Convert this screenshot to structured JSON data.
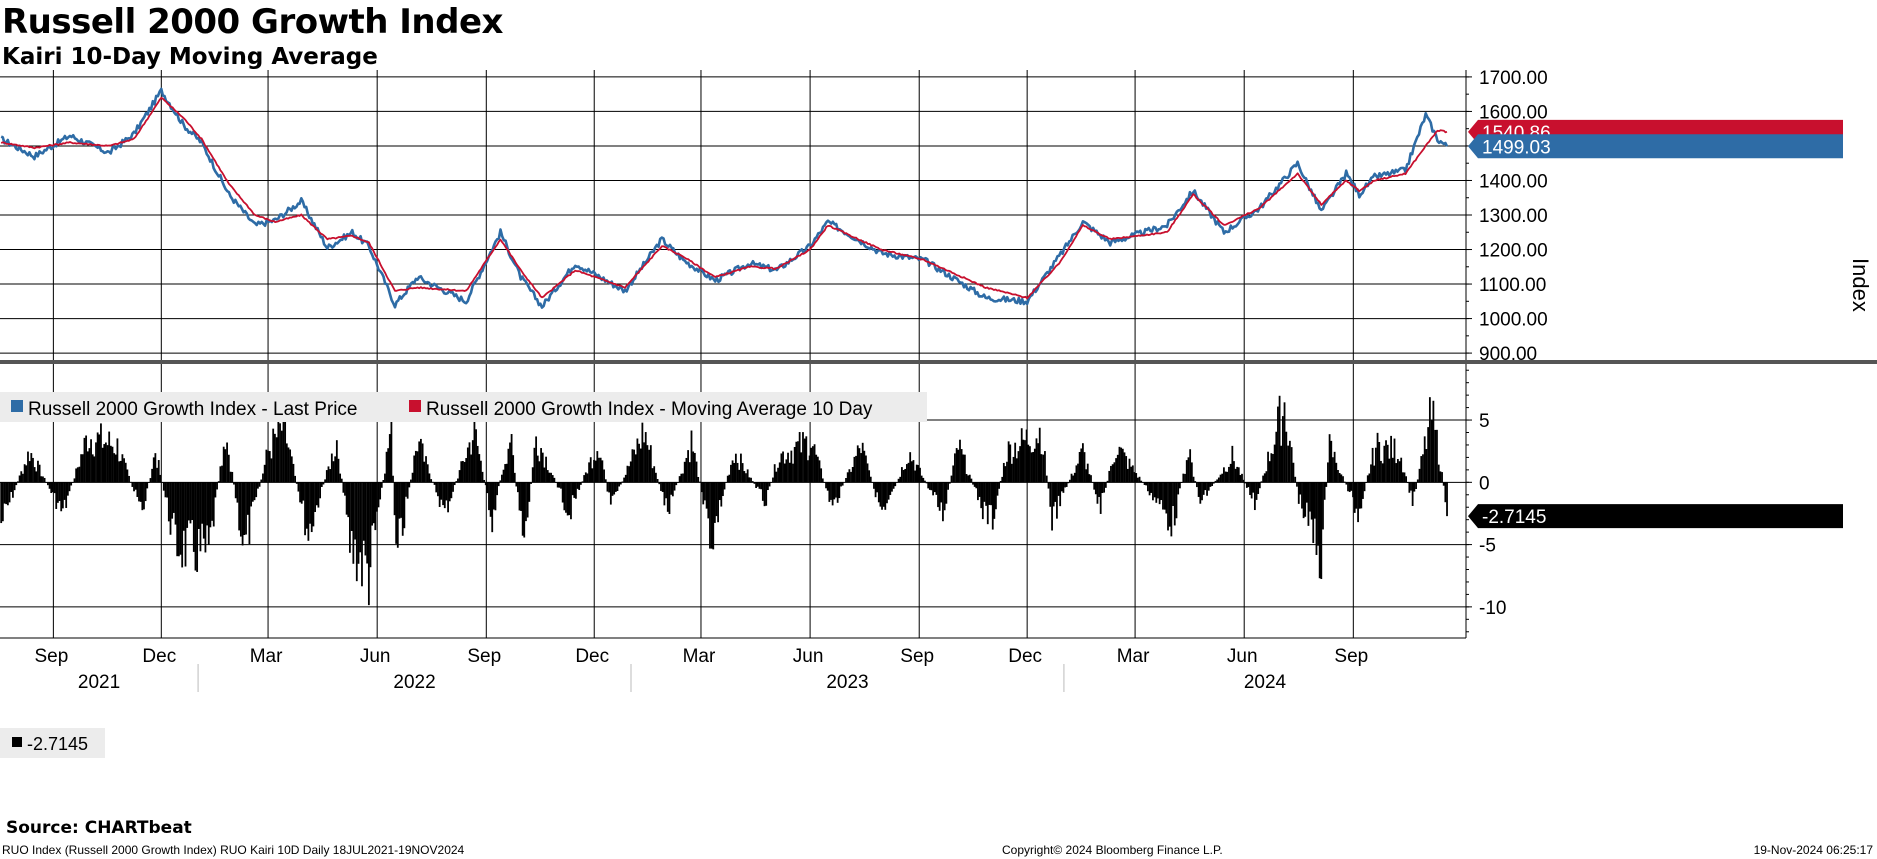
{
  "header": {
    "title": "Russell 2000 Growth Index",
    "subtitle": "Kairi 10-Day Moving Average"
  },
  "footer": {
    "source": "Source: CHARTbeat",
    "left": "RUO Index (Russell 2000 Growth Index) RUO Kairi 10D  Daily 18JUL2021-19NOV2024",
    "mid": "Copyright© 2024 Bloomberg Finance L.P.",
    "right": "19-Nov-2024 06:25:17"
  },
  "colors": {
    "price": "#2e6ca6",
    "ma": "#c8102e",
    "kairi": "#000000",
    "grid": "#000000",
    "background": "#ffffff"
  },
  "chart_data": [
    {
      "type": "line",
      "ylabel": "Index",
      "ylim": [
        880,
        1720
      ],
      "yticks": [
        "1700.00",
        "1600.00",
        "1500.00",
        "1400.00",
        "1300.00",
        "1200.00",
        "1100.00",
        "1000.00",
        "900.00"
      ],
      "grid": true,
      "legend_position": "bottom-left",
      "x_anchor_dates": [
        "2021-07-19",
        "2021-08-16",
        "2021-09-15",
        "2021-10-18",
        "2021-11-08",
        "2021-12-01",
        "2021-12-20",
        "2022-01-04",
        "2022-01-27",
        "2022-02-18",
        "2022-03-07",
        "2022-03-29",
        "2022-04-20",
        "2022-05-11",
        "2022-05-25",
        "2022-06-16",
        "2022-07-05",
        "2022-08-15",
        "2022-09-13",
        "2022-09-30",
        "2022-10-18",
        "2022-11-15",
        "2022-12-27",
        "2023-01-27",
        "2023-02-14",
        "2023-03-13",
        "2023-04-11",
        "2023-05-04",
        "2023-06-01",
        "2023-06-16",
        "2023-07-31",
        "2023-09-05",
        "2023-10-27",
        "2023-12-01",
        "2023-12-28",
        "2024-01-17",
        "2024-02-09",
        "2024-03-28",
        "2024-04-19",
        "2024-05-15",
        "2024-06-14",
        "2024-07-16",
        "2024-08-05",
        "2024-08-26",
        "2024-09-06",
        "2024-09-19",
        "2024-10-15",
        "2024-11-01",
        "2024-11-11",
        "2024-11-19"
      ],
      "series": [
        {
          "name": "Russell 2000 Growth Index - Last Price",
          "last_value": "1499.03",
          "values": [
            1520,
            1470,
            1530,
            1480,
            1535,
            1660,
            1560,
            1510,
            1360,
            1270,
            1285,
            1340,
            1205,
            1250,
            1210,
            1040,
            1120,
            1050,
            1250,
            1120,
            1035,
            1160,
            1080,
            1230,
            1170,
            1110,
            1160,
            1140,
            1210,
            1280,
            1190,
            1170,
            1060,
            1050,
            1180,
            1280,
            1220,
            1270,
            1370,
            1250,
            1320,
            1450,
            1310,
            1420,
            1360,
            1410,
            1430,
            1590,
            1520,
            1499
          ]
        },
        {
          "name": "Russell 2000 Growth Index - Moving Average 10 Day",
          "last_value": "1540.86",
          "values": [
            1510,
            1495,
            1510,
            1500,
            1520,
            1640,
            1580,
            1520,
            1390,
            1300,
            1280,
            1300,
            1230,
            1240,
            1220,
            1080,
            1090,
            1080,
            1230,
            1140,
            1060,
            1140,
            1090,
            1210,
            1180,
            1120,
            1150,
            1145,
            1200,
            1270,
            1200,
            1170,
            1090,
            1060,
            1160,
            1270,
            1230,
            1250,
            1360,
            1270,
            1320,
            1420,
            1330,
            1400,
            1370,
            1400,
            1420,
            1500,
            1545,
            1540.86
          ]
        }
      ]
    },
    {
      "type": "bar",
      "ylim": [
        -12.5,
        9.5
      ],
      "yticks": [
        "5",
        "0",
        "-5",
        "-10"
      ],
      "grid": true,
      "legend_position": "bottom-left",
      "series": [
        {
          "name": "",
          "last_value": "-2.7145",
          "legend_label": "-2.7145",
          "anchor_dates": [
            "2021-07-19",
            "2021-08-12",
            "2021-09-09",
            "2021-09-30",
            "2021-10-25",
            "2021-11-15",
            "2021-11-26",
            "2021-12-13",
            "2022-01-10",
            "2022-01-24",
            "2022-02-09",
            "2022-03-01",
            "2022-03-14",
            "2022-04-04",
            "2022-04-28",
            "2022-05-09",
            "2022-05-25",
            "2022-06-13",
            "2022-06-17",
            "2022-07-05",
            "2022-07-28",
            "2022-08-22",
            "2022-09-06",
            "2022-09-21",
            "2022-10-03",
            "2022-10-13",
            "2022-11-10",
            "2022-12-05",
            "2022-12-15",
            "2023-01-12",
            "2023-02-01",
            "2023-02-21",
            "2023-03-10",
            "2023-03-29",
            "2023-04-25",
            "2023-05-05",
            "2023-06-02",
            "2023-06-20",
            "2023-07-14",
            "2023-08-02",
            "2023-08-23",
            "2023-09-21",
            "2023-10-04",
            "2023-10-26",
            "2023-11-02",
            "2023-11-14",
            "2023-12-13",
            "2023-12-22",
            "2024-01-17",
            "2024-02-01",
            "2024-02-14",
            "2024-04-02",
            "2024-04-15",
            "2024-04-25",
            "2024-05-22",
            "2024-06-10",
            "2024-07-05",
            "2024-07-11",
            "2024-07-17",
            "2024-08-05",
            "2024-08-12",
            "2024-09-05",
            "2024-09-20",
            "2024-10-10",
            "2024-10-21",
            "2024-11-06",
            "2024-11-12",
            "2024-11-19"
          ],
          "anchor_values": [
            -4.0,
            3.0,
            -3.0,
            4.5,
            3.5,
            -3.0,
            3.0,
            -6.0,
            -7.0,
            5.0,
            -6.5,
            3.0,
            5.5,
            -5.0,
            4.0,
            -6.0,
            -8.8,
            5.5,
            -8.0,
            4.0,
            -3.0,
            5.0,
            -3.5,
            4.5,
            -6.5,
            4.5,
            -3.0,
            4.0,
            -2.5,
            5.0,
            -3.0,
            4.0,
            -5.5,
            3.0,
            -2.0,
            2.5,
            4.0,
            -2.5,
            3.5,
            -3.5,
            3.0,
            -3.0,
            3.5,
            -3.0,
            -3.5,
            3.0,
            5.0,
            -3.5,
            3.0,
            -2.5,
            3.5,
            -4.0,
            3.0,
            -2.0,
            2.5,
            -2.0,
            7.5,
            3.0,
            -1.5,
            -7.0,
            3.5,
            -3.0,
            3.5,
            3.0,
            -2.0,
            6.5,
            3.0,
            -2.7145
          ]
        }
      ]
    }
  ],
  "x_axis": {
    "months": [
      {
        "label": "Sep",
        "date": "2021-09-01"
      },
      {
        "label": "Dec",
        "date": "2021-12-01"
      },
      {
        "label": "Mar",
        "date": "2022-03-01"
      },
      {
        "label": "Jun",
        "date": "2022-06-01"
      },
      {
        "label": "Sep",
        "date": "2022-09-01"
      },
      {
        "label": "Dec",
        "date": "2022-12-01"
      },
      {
        "label": "Mar",
        "date": "2023-03-01"
      },
      {
        "label": "Jun",
        "date": "2023-06-01"
      },
      {
        "label": "Sep",
        "date": "2023-09-01"
      },
      {
        "label": "Dec",
        "date": "2023-12-01"
      },
      {
        "label": "Mar",
        "date": "2024-03-01"
      },
      {
        "label": "Jun",
        "date": "2024-06-01"
      },
      {
        "label": "Sep",
        "date": "2024-09-01"
      }
    ],
    "years": [
      {
        "label": "2021",
        "start": "2021-07-18",
        "end": "2022-01-01"
      },
      {
        "label": "2022",
        "start": "2022-01-01",
        "end": "2023-01-01"
      },
      {
        "label": "2023",
        "start": "2023-01-01",
        "end": "2024-01-01"
      },
      {
        "label": "2024",
        "start": "2024-01-01",
        "end": "2024-12-31"
      }
    ],
    "domain": [
      "2021-07-18",
      "2024-12-05"
    ]
  }
}
